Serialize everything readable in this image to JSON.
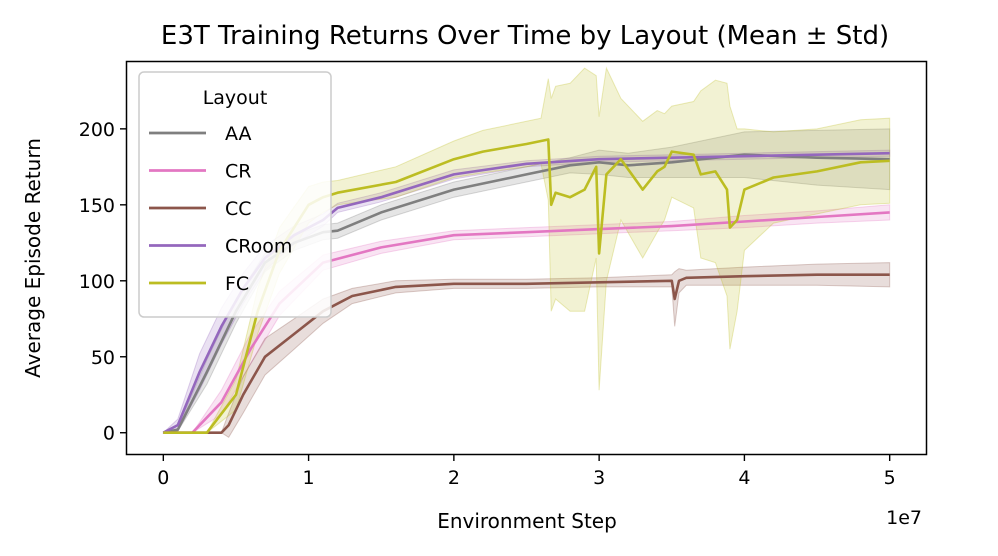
{
  "chart_data": {
    "type": "line",
    "title": "E3T Training Returns Over Time by Layout (Mean ± Std)",
    "xlabel": "Environment Step",
    "ylabel": "Average Episode Return",
    "x_scale_note": "1e7",
    "xlim": [
      -2500000,
      52500000
    ],
    "ylim": [
      -14,
      244
    ],
    "x_ticks": [
      0,
      10000000,
      20000000,
      30000000,
      40000000,
      50000000
    ],
    "x_tick_labels": [
      "0",
      "1",
      "2",
      "3",
      "4",
      "5"
    ],
    "y_ticks": [
      0,
      50,
      100,
      150,
      200
    ],
    "y_tick_labels": [
      "0",
      "50",
      "100",
      "150",
      "200"
    ],
    "grid": false,
    "legend": {
      "title": "Layout",
      "placement": "top-left"
    },
    "series": [
      {
        "name": "AA",
        "color": "#7f7f7f",
        "x": [
          0,
          1000000,
          3000000,
          5000000,
          7000000,
          9000000,
          11000000,
          12000000,
          15000000,
          20000000,
          25000000,
          28000000,
          30000000,
          32000000,
          35000000,
          40000000,
          45000000,
          50000000
        ],
        "y": [
          0,
          2,
          40,
          80,
          112,
          125,
          132,
          133,
          145,
          160,
          170,
          176,
          178,
          176,
          178,
          183,
          181,
          180
        ],
        "std": [
          0,
          1,
          8,
          8,
          6,
          5,
          5,
          5,
          5,
          5,
          5,
          5,
          8,
          8,
          10,
          15,
          18,
          20
        ]
      },
      {
        "name": "CR",
        "color": "#e377c2",
        "x": [
          0,
          2000000,
          4000000,
          6000000,
          8000000,
          10000000,
          11000000,
          15000000,
          20000000,
          25000000,
          30000000,
          35000000,
          40000000,
          45000000,
          50000000
        ],
        "y": [
          0,
          0,
          20,
          55,
          85,
          103,
          112,
          122,
          130,
          132,
          134,
          136,
          139,
          142,
          145
        ],
        "std": [
          0,
          0,
          8,
          10,
          8,
          6,
          5,
          4,
          3,
          3,
          3,
          3,
          4,
          4,
          5
        ]
      },
      {
        "name": "CC",
        "color": "#8c564b",
        "x": [
          0,
          4000000,
          4500000,
          5500000,
          7000000,
          9000000,
          11000000,
          13000000,
          16000000,
          20000000,
          25000000,
          30000000,
          35000000,
          35200000,
          35500000,
          36000000,
          40000000,
          45000000,
          50000000
        ],
        "y": [
          0,
          0,
          5,
          25,
          50,
          65,
          80,
          90,
          96,
          98,
          98,
          99,
          100,
          88,
          100,
          102,
          103,
          104,
          104
        ],
        "std": [
          0,
          0,
          8,
          12,
          12,
          10,
          8,
          5,
          4,
          3,
          3,
          3,
          4,
          18,
          8,
          5,
          6,
          7,
          8
        ]
      },
      {
        "name": "CRoom",
        "color": "#9467bd",
        "x": [
          0,
          1000000,
          2500000,
          4000000,
          5500000,
          7000000,
          9000000,
          11000000,
          12000000,
          15000000,
          20000000,
          25000000,
          30000000,
          35000000,
          40000000,
          45000000,
          50000000
        ],
        "y": [
          0,
          5,
          40,
          70,
          95,
          115,
          130,
          140,
          148,
          155,
          170,
          177,
          180,
          181,
          182,
          183,
          184
        ],
        "std": [
          0,
          4,
          12,
          12,
          10,
          8,
          6,
          4,
          3,
          3,
          3,
          2,
          2,
          2,
          2,
          2,
          2
        ]
      },
      {
        "name": "FC",
        "color": "#bcbd22",
        "x": [
          0,
          3000000,
          5000000,
          6500000,
          8000000,
          10000000,
          11000000,
          12000000,
          16000000,
          20000000,
          22000000,
          25000000,
          26000000,
          26500000,
          26700000,
          27000000,
          28000000,
          29000000,
          29800000,
          30000000,
          30500000,
          31500000,
          33000000,
          34000000,
          34500000,
          35000000,
          36500000,
          37000000,
          38000000,
          38800000,
          39000000,
          39500000,
          40000000,
          42000000,
          45000000,
          48000000,
          50000000
        ],
        "y": [
          0,
          0,
          25,
          80,
          120,
          150,
          155,
          158,
          165,
          180,
          185,
          190,
          192,
          193,
          150,
          158,
          155,
          160,
          175,
          118,
          170,
          180,
          160,
          172,
          175,
          185,
          183,
          170,
          172,
          160,
          135,
          140,
          160,
          168,
          172,
          178,
          179
        ],
        "std": [
          0,
          0,
          10,
          15,
          15,
          12,
          10,
          8,
          10,
          12,
          14,
          15,
          15,
          40,
          70,
          70,
          75,
          80,
          60,
          90,
          70,
          40,
          45,
          40,
          35,
          30,
          35,
          55,
          60,
          70,
          80,
          60,
          40,
          30,
          28,
          28,
          28
        ]
      }
    ]
  }
}
